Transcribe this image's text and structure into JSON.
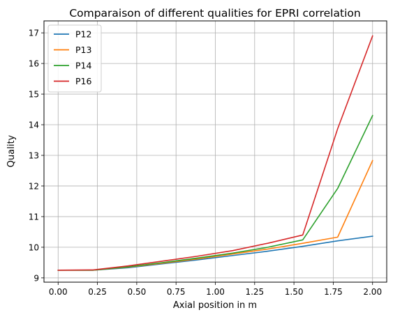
{
  "chart_data": {
    "type": "line",
    "title": "Comparaison of different qualities for EPRI correlation",
    "xlabel": "Axial position in m",
    "ylabel": "Quality",
    "xlim": [
      -0.09,
      2.09
    ],
    "ylim": [
      8.86,
      17.39
    ],
    "xticks": [
      "0.00",
      "0.25",
      "0.50",
      "0.75",
      "1.00",
      "1.25",
      "1.50",
      "1.75",
      "2.00"
    ],
    "yticks": [
      "9",
      "10",
      "11",
      "12",
      "13",
      "14",
      "15",
      "16",
      "17"
    ],
    "grid": true,
    "legend_position": "top-left",
    "x": [
      0.0,
      0.222,
      0.444,
      0.667,
      0.889,
      1.111,
      1.333,
      1.556,
      1.778,
      2.0
    ],
    "series": [
      {
        "name": "P12",
        "color": "#1f77b4",
        "values": [
          9.25,
          9.25,
          9.33,
          9.46,
          9.59,
          9.73,
          9.87,
          10.03,
          10.21,
          10.36
        ]
      },
      {
        "name": "P13",
        "color": "#ff7f0e",
        "values": [
          9.25,
          9.25,
          9.35,
          9.48,
          9.62,
          9.78,
          9.94,
          10.13,
          10.33,
          12.83
        ]
      },
      {
        "name": "P14",
        "color": "#2ca02c",
        "values": [
          9.25,
          9.25,
          9.36,
          9.5,
          9.65,
          9.81,
          10.0,
          10.24,
          11.92,
          14.3
        ]
      },
      {
        "name": "P16",
        "color": "#d62728",
        "values": [
          9.25,
          9.26,
          9.39,
          9.55,
          9.71,
          9.89,
          10.13,
          10.4,
          13.87,
          16.9
        ]
      }
    ]
  }
}
